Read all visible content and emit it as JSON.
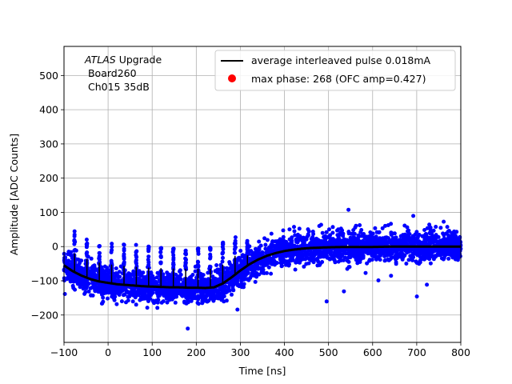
{
  "chart_data": {
    "type": "scatter",
    "title": "",
    "xlabel": "Time [ns]",
    "ylabel": "Amplitude [ADC Counts]",
    "xlim": [
      -100,
      800
    ],
    "ylim": [
      -280,
      585
    ],
    "xticks": [
      -100,
      0,
      100,
      200,
      300,
      400,
      500,
      600,
      700,
      800
    ],
    "yticks": [
      -200,
      -100,
      0,
      100,
      200,
      300,
      400,
      500
    ],
    "grid": true,
    "legend_placement": "top-right",
    "annotation": {
      "atlas": "ATLAS",
      "upgrade": " Upgrade",
      "line2": " Board260",
      "line3": " Ch015 35dB"
    },
    "colors": {
      "scatter": "#0000ff",
      "average": "#000000",
      "max_phase": "#ff0000"
    },
    "series": [
      {
        "name": "average interleaved pulse 0.018mA",
        "kind": "line",
        "x": [
          -100,
          -80,
          -60,
          -40,
          -20,
          0,
          20,
          40,
          60,
          80,
          100,
          120,
          140,
          160,
          180,
          200,
          220,
          240,
          260,
          280,
          300,
          320,
          340,
          360,
          380,
          400,
          420,
          440,
          460,
          480,
          500,
          550,
          600,
          650,
          700,
          750,
          800
        ],
        "y": [
          -55,
          -72,
          -85,
          -95,
          -102,
          -106,
          -110,
          -112,
          -114,
          -116,
          -117,
          -118,
          -119,
          -119,
          -120,
          -120,
          -121,
          -119,
          -108,
          -90,
          -70,
          -52,
          -38,
          -27,
          -19,
          -13,
          -9,
          -6,
          -4,
          -3,
          -2,
          -1,
          -1,
          0,
          0,
          0,
          0
        ]
      },
      {
        "name": "",
        "kind": "scatter",
        "description_hidden": true
      },
      {
        "name": "max phase: 268 (OFC amp=0.427)",
        "kind": "marker"
      }
    ]
  }
}
